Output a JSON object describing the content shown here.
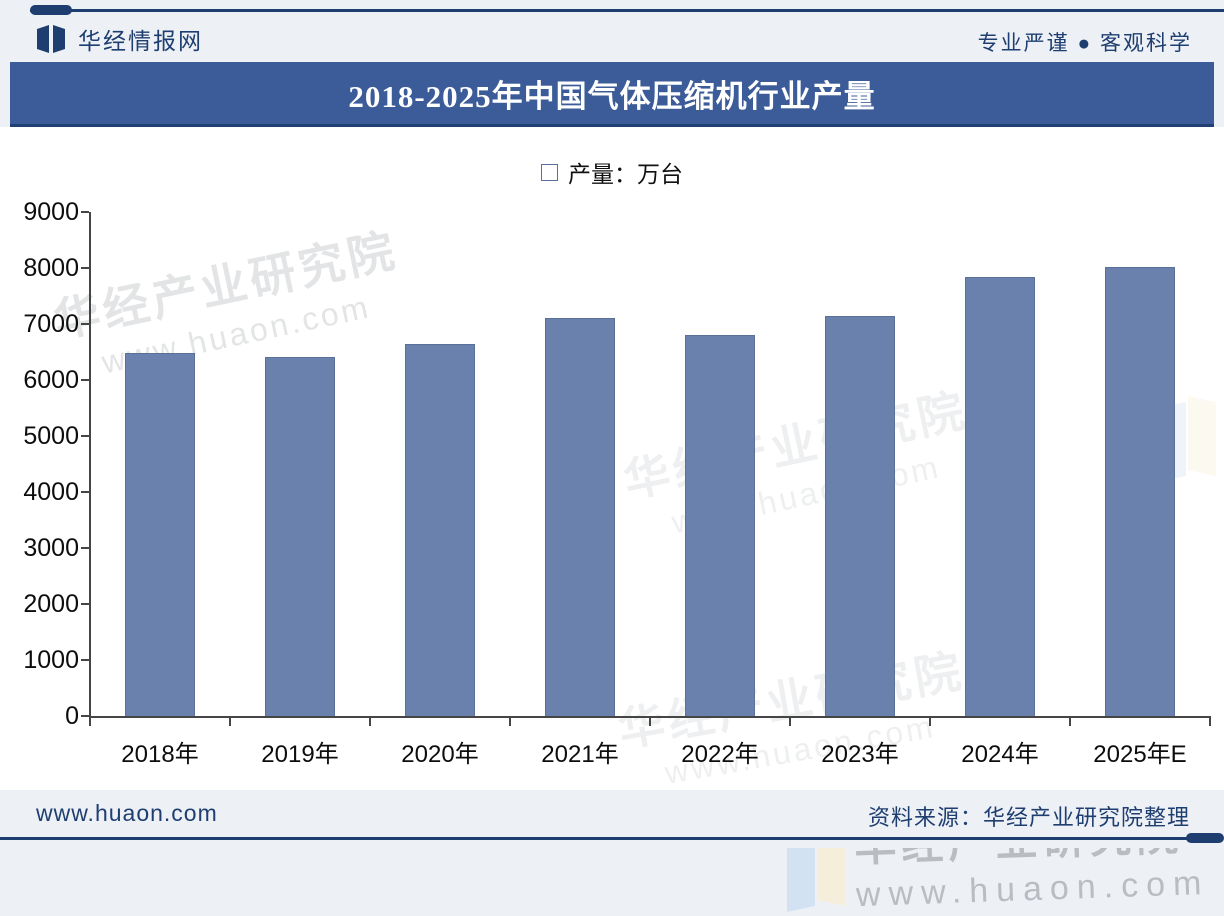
{
  "header": {
    "brand": "华经情报网",
    "tagline": "专业严谨 ● 客观科学"
  },
  "title": {
    "text": "2018-2025年中国气体压缩机行业产量",
    "bar_color": "#3c5c99",
    "text_color": "#ffffff"
  },
  "legend": {
    "label": "产量：万台",
    "marker_color": "#6b81ad"
  },
  "chart_data": {
    "type": "bar",
    "title": "2018-2025年中国气体压缩机行业产量",
    "series_name": "产量：万台",
    "unit": "万台",
    "categories": [
      "2018年",
      "2019年",
      "2020年",
      "2021年",
      "2022年",
      "2023年",
      "2024年",
      "2025年E"
    ],
    "values": [
      6480,
      6410,
      6650,
      7100,
      6800,
      7150,
      7840,
      8020
    ],
    "ylim": [
      0,
      9000
    ],
    "ytick_step": 1000,
    "yticks": [
      "9000",
      "8000",
      "7000",
      "6000",
      "5000",
      "4000",
      "3000",
      "2000",
      "1000",
      "0"
    ],
    "xlabel": "",
    "ylabel": "",
    "grid": false,
    "legend_position": "top-center",
    "bar_color": "#6b81ad",
    "bar_border_color": "#5a7096",
    "axis_color": "#454545"
  },
  "watermarks": {
    "brand_text": "华经产业研究院",
    "url_text": "www.huaon.com"
  },
  "footer": {
    "site": "www.huaon.com",
    "source": "资料来源：华经产业研究院整理"
  }
}
